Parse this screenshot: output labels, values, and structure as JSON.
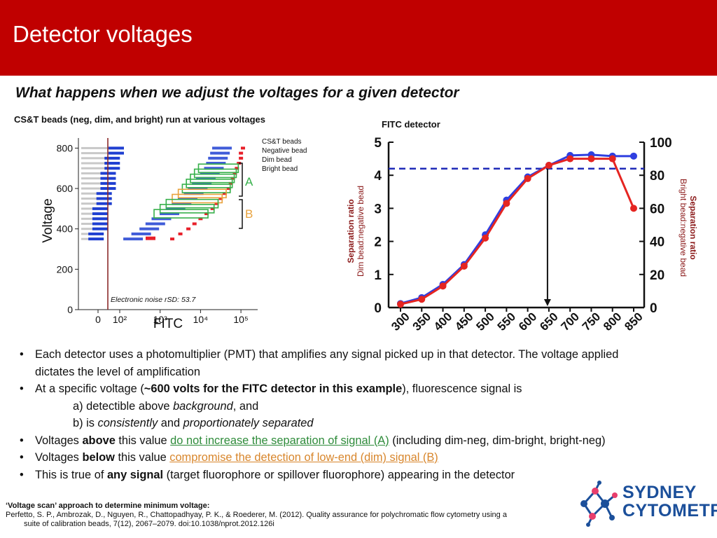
{
  "slide": {
    "title": "Detector voltages",
    "subtitle": "What happens when we adjust the voltages for a given detector"
  },
  "left_panel": {
    "caption": "CS&T beads (neg, dim, and bright) run at various voltages",
    "legend_title": "CS&T beads",
    "legend_items": [
      "Negative bead",
      "Dim bead",
      "Bright bead"
    ],
    "noise_label": "Electronic noise rSD: 53.7",
    "bracket_a": "A",
    "bracket_b": "B",
    "colors": {
      "negative": "#1f3fd1",
      "dim": "#1f3fd1",
      "bright": "#e8202a",
      "box_green": "#36b04a",
      "box_orange": "#e8a23c",
      "noise_line": "#8b2a2a"
    }
  },
  "right_panel": {
    "caption": "FITC detector"
  },
  "chart_data": [
    {
      "type": "scatter",
      "title": "",
      "xlabel": "FITC",
      "ylabel": "Voltage",
      "xscale": "log (biexponential)",
      "x_tick_labels": [
        "0",
        "10²",
        "10³",
        "10⁴",
        "10⁵"
      ],
      "y_ticks": [
        0,
        200,
        400,
        600,
        800
      ],
      "ylim": [
        0,
        850
      ],
      "legend": {
        "title": "CS&T beads",
        "entries": [
          "Negative bead",
          "Dim bead",
          "Bright bead"
        ],
        "placement": "top-right"
      },
      "series": [
        {
          "name": "Negative bead",
          "voltages": [
            800,
            775,
            750,
            725,
            700,
            675,
            650,
            625,
            600,
            575,
            550,
            525,
            500,
            475,
            450,
            425,
            400,
            375,
            350
          ],
          "x_log10": [
            2.0,
            2.0,
            1.9,
            1.9,
            1.9,
            1.8,
            1.8,
            1.8,
            1.8,
            1.7,
            1.7,
            1.7,
            1.6,
            1.6,
            1.6,
            1.6,
            1.6,
            1.5,
            1.5
          ]
        },
        {
          "name": "Dim bead",
          "voltages": [
            800,
            775,
            750,
            725,
            700,
            675,
            650,
            625,
            600,
            575,
            550,
            525,
            500,
            475,
            450,
            425,
            400,
            375,
            350
          ],
          "x_log10": [
            4.6,
            4.55,
            4.5,
            4.45,
            4.4,
            4.3,
            4.2,
            4.1,
            4.0,
            3.9,
            3.75,
            3.6,
            3.45,
            3.3,
            3.1,
            2.95,
            2.8,
            2.6,
            2.4
          ]
        },
        {
          "name": "Bright bead",
          "voltages": [
            800,
            775,
            750,
            725,
            700,
            675,
            650,
            625,
            600,
            575,
            550,
            525,
            500,
            475,
            450,
            425,
            400,
            375,
            350
          ],
          "x_log10": [
            5.05,
            5.0,
            5.0,
            4.95,
            4.9,
            4.85,
            4.8,
            4.75,
            4.7,
            4.6,
            4.5,
            4.4,
            4.3,
            4.15,
            4.0,
            3.85,
            3.7,
            3.5,
            3.3
          ]
        }
      ],
      "annotations": [
        "Electronic noise rSD: 53.7",
        "A",
        "B"
      ]
    },
    {
      "type": "line",
      "title": "",
      "xlabel": "",
      "categories": [
        300,
        350,
        400,
        450,
        500,
        550,
        600,
        650,
        700,
        750,
        800,
        850
      ],
      "y_left": {
        "label_line1": "Separation ratio",
        "label_line2": "Dim bead:negative bead",
        "ylim": [
          0,
          5
        ],
        "ticks": [
          0,
          1,
          2,
          3,
          4,
          5
        ]
      },
      "y_right": {
        "label_line1": "Separation ratio",
        "label_line2": "Bright bead:negative bead",
        "ylim": [
          0,
          100
        ],
        "ticks": [
          0,
          20,
          40,
          60,
          80,
          100
        ]
      },
      "series": [
        {
          "name": "Dim bead:negative bead",
          "axis": "left",
          "color": "#2f3fe0",
          "values": [
            0.12,
            0.3,
            0.7,
            1.3,
            2.2,
            3.25,
            3.95,
            4.3,
            4.6,
            4.62,
            4.58,
            4.58
          ]
        },
        {
          "name": "Bright bead:negative bead",
          "axis": "right",
          "color": "#e52521",
          "values": [
            2,
            5,
            13,
            25,
            42,
            63,
            78,
            86,
            90,
            90,
            90,
            60
          ]
        }
      ],
      "reference_line": {
        "axis": "left",
        "value": 4.2,
        "style": "dashed",
        "color": "#1f2bb8"
      },
      "marker_x": 650
    }
  ],
  "bullets": {
    "b1": "Each detector uses a photomultiplier (PMT) that amplifies any signal picked up in that detector. The voltage applied",
    "b1_cont": "dictates the level of amplification",
    "b2_pre": "At a specific voltage (",
    "b2_bold": "~600 volts for the FITC detector in this example",
    "b2_post": "), fluorescence signal is",
    "b2a_pre": "a) detectible above ",
    "b2a_it": "background",
    "b2a_post": ", and",
    "b2b_pre": "b) is ",
    "b2b_it1": "consistently",
    "b2b_mid": " and ",
    "b2b_it2": "proportionately separated",
    "b3_pre": "Voltages ",
    "b3_bold": "above",
    "b3_mid": " this value ",
    "b3_green": "do not increase the separation of signal (A)",
    "b3_post": " (including dim-neg, dim-bright, bright-neg)",
    "b4_pre": "Voltages ",
    "b4_bold": "below",
    "b4_mid": " this value ",
    "b4_orange": "compromise the detection of low-end (dim) signal (B)",
    "b5_pre": "This is true of ",
    "b5_bold": "any signal",
    "b5_post": " (target fluorophore or spillover fluorophore) appearing in the detector"
  },
  "reference": {
    "heading": "‘Voltage scan’ approach to determine minimum voltage:",
    "line1": "Perfetto, S. P., Ambrozak, D., Nguyen, R., Chattopadhyay, P. K., & Roederer, M. (2012). Quality assurance for polychromatic flow cytometry using a",
    "line2": "suite of calibration beads, 7(12), 2067–2079. doi:10.1038/nprot.2012.126i"
  },
  "logo": {
    "line1": "SYDNEY",
    "line2": "CYTOMETRY",
    "color": "#1b4f9a",
    "accent": "#e83e6c"
  }
}
